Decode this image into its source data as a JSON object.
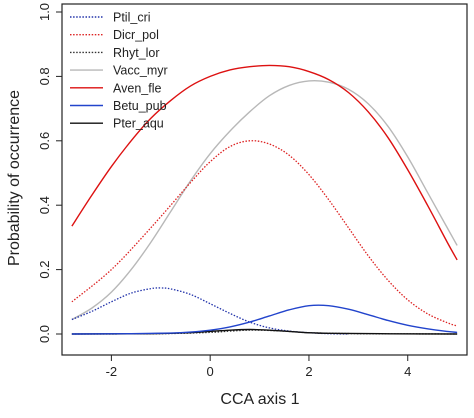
{
  "chart_data": {
    "type": "line",
    "xlabel": "CCA axis 1",
    "ylabel": "Probability of occurrence",
    "xlim": [
      -3,
      5.2
    ],
    "ylim": [
      0,
      1.0
    ],
    "xticks": [
      -2,
      0,
      2,
      4
    ],
    "yticks": [
      0.0,
      0.2,
      0.4,
      0.6,
      0.8,
      1.0
    ],
    "xtick_labels": [
      "-2",
      "0",
      "2",
      "4"
    ],
    "ytick_labels": [
      "0.0",
      "0.2",
      "0.4",
      "0.6",
      "0.8",
      "1.0"
    ],
    "legend_position": "top-left",
    "series": [
      {
        "name": "Ptil_cri",
        "color": "#2233aa",
        "dash": "dotted",
        "x": [
          -2.8,
          -2.4,
          -2.0,
          -1.6,
          -1.2,
          -1.0,
          -0.8,
          -0.4,
          0.0,
          0.4,
          0.8,
          1.2,
          1.6,
          2.0,
          2.4,
          2.8
        ],
        "y": [
          0.045,
          0.07,
          0.1,
          0.127,
          0.141,
          0.143,
          0.14,
          0.123,
          0.094,
          0.064,
          0.037,
          0.019,
          0.009,
          0.004,
          0.001,
          0.0
        ]
      },
      {
        "name": "Dicr_pol",
        "color": "#dd2222",
        "dash": "dotted",
        "x": [
          -2.8,
          -2.0,
          -1.2,
          -0.4,
          0.0,
          0.4,
          0.8,
          1.2,
          1.6,
          2.0,
          2.4,
          2.8,
          3.2,
          3.6,
          4.0,
          4.4,
          4.8,
          5.0
        ],
        "y": [
          0.1,
          0.2,
          0.33,
          0.47,
          0.535,
          0.582,
          0.6,
          0.59,
          0.555,
          0.495,
          0.417,
          0.33,
          0.243,
          0.167,
          0.106,
          0.063,
          0.035,
          0.025
        ]
      },
      {
        "name": "Rhyt_lor",
        "color": "#333333",
        "dash": "dotted",
        "x": [
          -2.8,
          -1.0,
          0.0,
          0.4,
          0.8,
          1.2,
          1.6,
          2.0,
          3.0,
          5.0
        ],
        "y": [
          0.0,
          0.001,
          0.005,
          0.009,
          0.012,
          0.011,
          0.008,
          0.004,
          0.001,
          0.0
        ]
      },
      {
        "name": "Vacc_myr",
        "color": "#b8b8b8",
        "dash": "solid",
        "x": [
          -2.8,
          -2.4,
          -2.0,
          -1.6,
          -1.2,
          -0.8,
          -0.4,
          0.0,
          0.4,
          0.8,
          1.2,
          1.6,
          2.0,
          2.4,
          2.8,
          3.2,
          3.6,
          4.0,
          4.4,
          4.8,
          5.0
        ],
        "y": [
          0.045,
          0.08,
          0.13,
          0.2,
          0.285,
          0.38,
          0.475,
          0.56,
          0.63,
          0.69,
          0.74,
          0.772,
          0.786,
          0.782,
          0.76,
          0.715,
          0.645,
          0.55,
          0.44,
          0.33,
          0.275
        ]
      },
      {
        "name": "Aven_fle",
        "color": "#dd1111",
        "dash": "solid",
        "x": [
          -2.8,
          -2.4,
          -2.0,
          -1.6,
          -1.2,
          -0.8,
          -0.4,
          0.0,
          0.4,
          0.8,
          1.2,
          1.6,
          2.0,
          2.4,
          2.8,
          3.2,
          3.6,
          4.0,
          4.4,
          4.8,
          5.0
        ],
        "y": [
          0.335,
          0.43,
          0.52,
          0.6,
          0.67,
          0.725,
          0.77,
          0.8,
          0.82,
          0.83,
          0.834,
          0.83,
          0.815,
          0.79,
          0.75,
          0.69,
          0.61,
          0.51,
          0.4,
          0.285,
          0.23
        ]
      },
      {
        "name": "Betu_pub",
        "color": "#2244cc",
        "dash": "solid",
        "x": [
          -2.8,
          -1.6,
          -0.8,
          -0.4,
          0.0,
          0.4,
          0.8,
          1.2,
          1.6,
          2.0,
          2.4,
          2.8,
          3.2,
          3.6,
          4.0,
          4.4,
          4.8,
          5.0
        ],
        "y": [
          0.0,
          0.001,
          0.003,
          0.006,
          0.012,
          0.022,
          0.037,
          0.056,
          0.075,
          0.088,
          0.088,
          0.077,
          0.06,
          0.042,
          0.027,
          0.016,
          0.008,
          0.005
        ]
      },
      {
        "name": "Pter_aqu",
        "color": "#111111",
        "dash": "solid",
        "x": [
          -2.8,
          -1.2,
          -0.4,
          0.0,
          0.4,
          0.8,
          1.2,
          1.6,
          2.4,
          5.0
        ],
        "y": [
          0.0,
          0.001,
          0.004,
          0.008,
          0.012,
          0.014,
          0.012,
          0.008,
          0.002,
          0.0
        ]
      }
    ]
  }
}
